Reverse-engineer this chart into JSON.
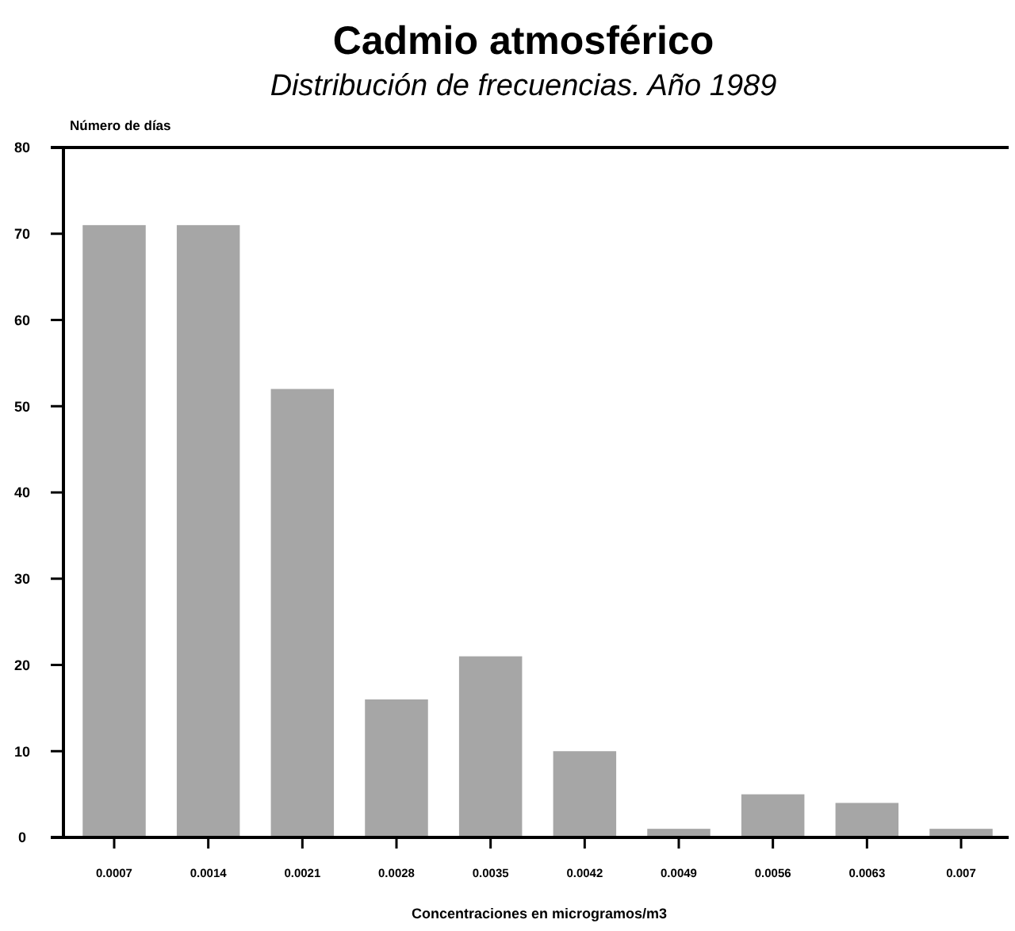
{
  "chart_data": {
    "type": "bar",
    "title": "Cadmio atmosférico",
    "subtitle": "Distribución de frecuencias. Año 1989",
    "xlabel": "Concentraciones en microgramos/m3",
    "ylabel": "Número de días",
    "categories": [
      "0.0007",
      "0.0014",
      "0.0021",
      "0.0028",
      "0.0035",
      "0.0042",
      "0.0049",
      "0.0056",
      "0.0063",
      "0.007"
    ],
    "values": [
      71,
      71,
      52,
      16,
      21,
      10,
      1,
      5,
      4,
      1
    ],
    "color": "#a6a6a6",
    "ylim": [
      0,
      80
    ],
    "yticks": [
      0,
      10,
      20,
      30,
      40,
      50,
      60,
      70,
      80
    ],
    "grid": false
  }
}
